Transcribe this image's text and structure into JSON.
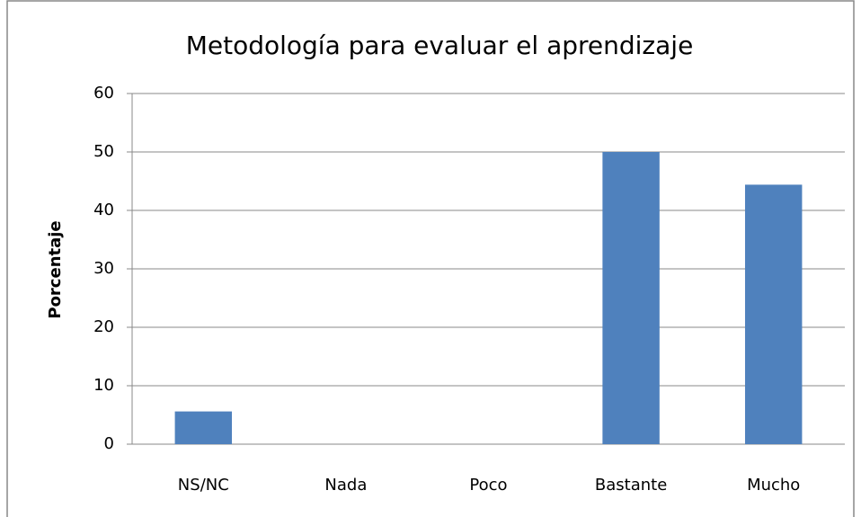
{
  "chart_data": {
    "type": "bar",
    "title": "Metodología para evaluar el aprendizaje",
    "y_label": "Porcentaje",
    "categories": [
      "NS/NC",
      "Nada",
      "Poco",
      "Bastante",
      "Mucho"
    ],
    "values": [
      5.6,
      0,
      0,
      50,
      44.4
    ],
    "color": "#4f81bd",
    "ylim": [
      0,
      60
    ],
    "yticks": [
      0,
      10,
      20,
      30,
      40,
      50,
      60
    ],
    "grid": true
  }
}
